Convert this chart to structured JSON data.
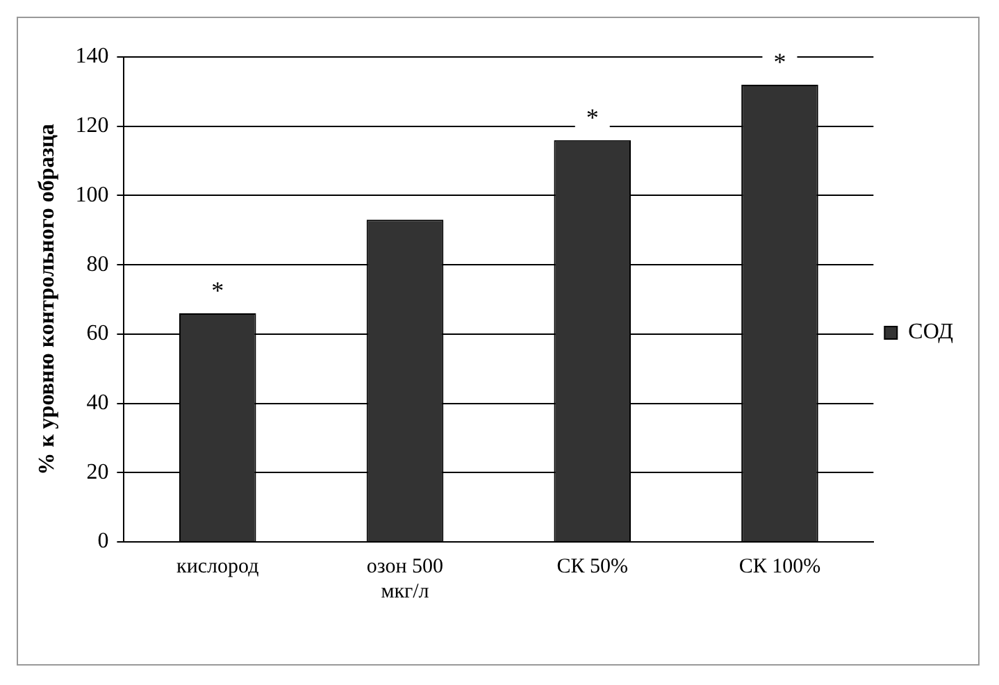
{
  "chart_data": {
    "type": "bar",
    "ylabel": "% к уровню контрольного образца",
    "categories": [
      "кислород",
      "озон 500 мкг/л",
      "СК 50%",
      "СК 100%"
    ],
    "series": [
      {
        "name": "СОД",
        "color": "#333333",
        "values": [
          66,
          93,
          116,
          132
        ]
      }
    ],
    "ylim": [
      0,
      140
    ],
    "yticks": [
      0,
      20,
      40,
      60,
      80,
      100,
      120,
      140
    ],
    "grid": "y",
    "legend": "right",
    "annotations": [
      {
        "text": "*",
        "x": "кислород",
        "y": 66
      },
      {
        "text": "*",
        "x": "СК 50%",
        "y": 116
      },
      {
        "text": "*",
        "x": "СК 100%",
        "y": 132
      }
    ]
  }
}
